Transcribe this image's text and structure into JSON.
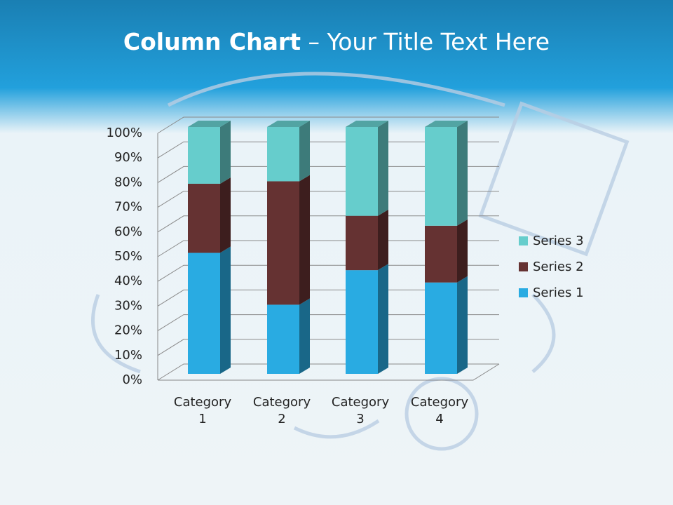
{
  "slide": {
    "title_bold": "Column Chart",
    "title_rest": "– Your Title Text Here"
  },
  "chart_data": {
    "type": "bar",
    "stacked": true,
    "categories": [
      "Category 1",
      "Category 2",
      "Category 3",
      "Category 4"
    ],
    "series": [
      {
        "name": "Series 1",
        "color": "#29abe2",
        "values": [
          49,
          28,
          42,
          37
        ]
      },
      {
        "name": "Series 2",
        "color": "#653232",
        "values": [
          28,
          50,
          22,
          23
        ]
      },
      {
        "name": "Series 3",
        "color": "#66cdcc",
        "values": [
          23,
          22,
          36,
          40
        ]
      }
    ],
    "ylim": [
      0,
      100
    ],
    "yticks": [
      {
        "value": 0,
        "label": "0%"
      },
      {
        "value": 10,
        "label": "10%"
      },
      {
        "value": 20,
        "label": "20%"
      },
      {
        "value": 30,
        "label": "30%"
      },
      {
        "value": 40,
        "label": "40%"
      },
      {
        "value": 50,
        "label": "50%"
      },
      {
        "value": 60,
        "label": "60%"
      },
      {
        "value": 70,
        "label": "70%"
      },
      {
        "value": 80,
        "label": "80%"
      },
      {
        "value": 90,
        "label": "90%"
      },
      {
        "value": 100,
        "label": "100%"
      }
    ],
    "grid": true,
    "legend": "right"
  }
}
